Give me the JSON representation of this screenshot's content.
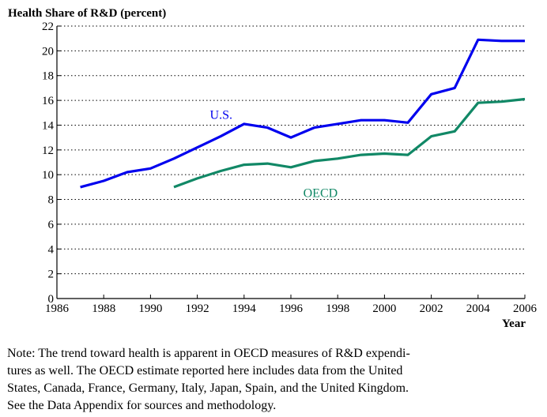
{
  "chart_data": {
    "type": "line",
    "title": "Health Share of R&D (percent)",
    "xlabel": "Year",
    "ylabel": "",
    "xlim": [
      1986,
      2006
    ],
    "ylim": [
      0,
      22
    ],
    "x_ticks": [
      1986,
      1988,
      1990,
      1992,
      1994,
      1996,
      1998,
      2000,
      2002,
      2004,
      2006
    ],
    "y_ticks": [
      0,
      2,
      4,
      6,
      8,
      10,
      12,
      14,
      16,
      18,
      20,
      22
    ],
    "grid": "horizontal dotted",
    "series": [
      {
        "name": "U.S.",
        "color": "#0000ee",
        "x": [
          1987,
          1988,
          1989,
          1990,
          1991,
          1992,
          1993,
          1994,
          1995,
          1996,
          1997,
          1998,
          1999,
          2000,
          2001,
          2002,
          2003,
          2004,
          2005,
          2006
        ],
        "y": [
          9.0,
          9.5,
          10.2,
          10.5,
          11.3,
          12.2,
          13.1,
          14.1,
          13.8,
          13.0,
          13.8,
          14.1,
          14.4,
          14.4,
          14.2,
          16.5,
          17.0,
          20.9,
          20.8,
          20.8
        ]
      },
      {
        "name": "OECD",
        "color": "#118866",
        "x": [
          1991,
          1992,
          1993,
          1994,
          1995,
          1996,
          1997,
          1998,
          1999,
          2000,
          2001,
          2002,
          2003,
          2004,
          2005,
          2006
        ],
        "y": [
          9.0,
          9.7,
          10.3,
          10.8,
          10.9,
          10.6,
          11.1,
          11.3,
          11.6,
          11.7,
          11.6,
          13.1,
          13.5,
          15.8,
          15.9,
          16.1
        ]
      }
    ]
  },
  "note": {
    "lines": [
      "Note: The trend toward health is apparent in OECD measures of R&D expendi-",
      "tures as well.  The OECD estimate reported here includes data from the United",
      "States, Canada, France, Germany, Italy, Japan, Spain, and the United Kingdom.",
      "See the Data Appendix for sources and methodology."
    ]
  }
}
